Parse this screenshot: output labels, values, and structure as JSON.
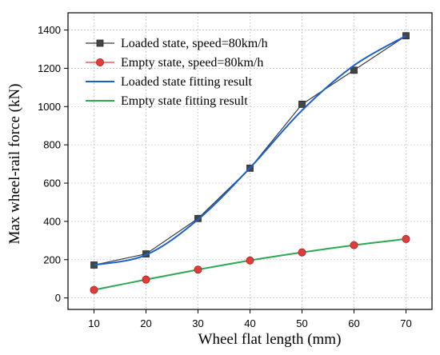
{
  "chart_data": {
    "type": "line",
    "xlabel": "Wheel flat length  (mm)",
    "ylabel": "Max wheel-rail force (kN)",
    "xlim": [
      5,
      75
    ],
    "ylim": [
      -60,
      1490
    ],
    "x_ticks": [
      10,
      20,
      30,
      40,
      50,
      60,
      70
    ],
    "y_ticks": [
      0,
      200,
      400,
      600,
      800,
      1000,
      1200,
      1400
    ],
    "grid": true,
    "legend_position": "top-left",
    "x": [
      10,
      20,
      30,
      40,
      50,
      60,
      70
    ],
    "series": [
      {
        "name": "Loaded state, speed=80km/h",
        "kind": "line-markers",
        "marker": "square",
        "color": "#3a3a3a",
        "marker_color": "#444444",
        "values": [
          172,
          230,
          415,
          678,
          1012,
          1190,
          1370
        ]
      },
      {
        "name": "Empty state, speed=80km/h",
        "kind": "markers",
        "marker": "circle",
        "color": "#e03c3c",
        "values": [
          42,
          96,
          148,
          196,
          238,
          276,
          308
        ]
      },
      {
        "name": "Loaded state fitting result",
        "kind": "curve",
        "color": "#1a5fd1",
        "values": [
          172,
          225,
          410,
          680,
          980,
          1215,
          1370
        ]
      },
      {
        "name": "Empty state fitting result",
        "kind": "curve",
        "color": "#2ea853",
        "values": [
          42,
          96,
          148,
          196,
          238,
          276,
          308
        ]
      }
    ]
  }
}
